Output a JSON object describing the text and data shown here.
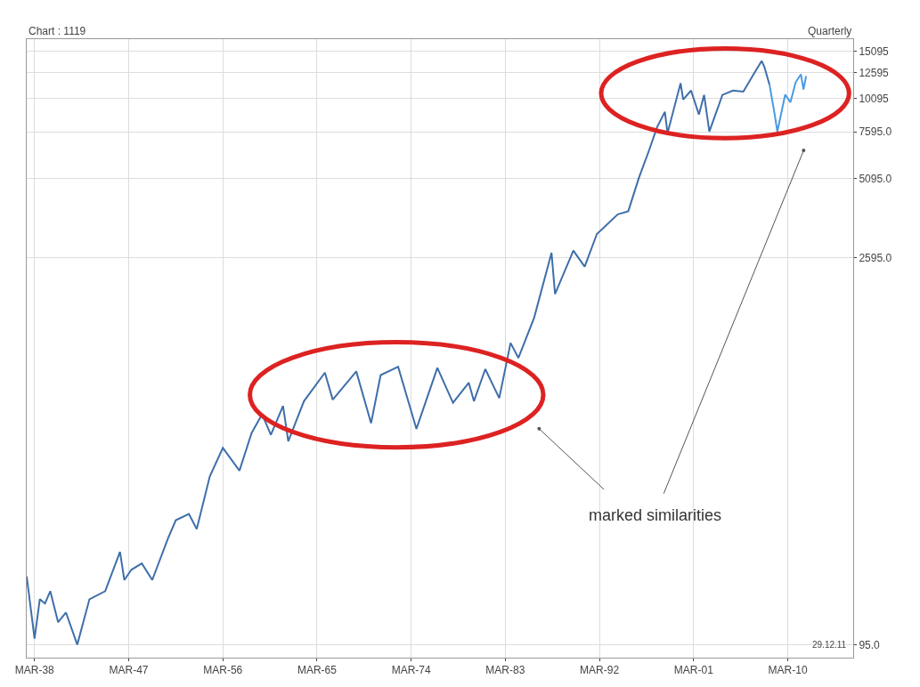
{
  "chart_data": {
    "type": "line",
    "series": [
      {
        "color": "#3f6faa",
        "x": [
          "1937-06",
          "1938-03",
          "1938-09",
          "1939-03",
          "1939-09",
          "1940-06",
          "1941-03",
          "1942-04",
          "1943-06",
          "1944-12",
          "1946-05",
          "1946-10",
          "1947-06",
          "1948-06",
          "1949-06",
          "1950-12",
          "1951-09",
          "1952-12",
          "1953-09",
          "1954-12",
          "1956-03",
          "1957-10",
          "1958-12",
          "1959-12",
          "1960-10",
          "1961-12",
          "1962-06",
          "1963-12",
          "1965-12",
          "1966-09",
          "1968-12",
          "1970-05",
          "1971-04",
          "1972-12",
          "1974-09",
          "1976-09",
          "1978-03",
          "1979-09",
          "1980-03",
          "1981-04",
          "1982-08",
          "1983-09",
          "1984-06",
          "1985-12",
          "1987-08",
          "1987-12",
          "1989-09",
          "1990-10",
          "1991-12",
          "1993-12",
          "1994-12",
          "1995-12",
          "1996-12",
          "1997-09",
          "1998-06",
          "1998-09",
          "1999-12",
          "2000-03",
          "2000-12",
          "2001-09",
          "2002-03",
          "2002-09",
          "2003-12",
          "2004-12",
          "2005-12",
          "2006-12",
          "2007-09",
          "2007-12",
          "2008-06"
        ],
        "values": [
          170,
          100,
          140,
          135,
          150,
          115,
          125,
          95,
          140,
          150,
          210,
          165,
          180,
          190,
          165,
          235,
          275,
          290,
          255,
          400,
          510,
          420,
          580,
          680,
          570,
          730,
          540,
          760,
          970,
          770,
          980,
          630,
          950,
          1020,
          600,
          1010,
          750,
          890,
          760,
          1000,
          780,
          1250,
          1100,
          1550,
          2700,
          1900,
          2750,
          2400,
          3170,
          3750,
          3850,
          5100,
          6500,
          7900,
          9000,
          7500,
          11500,
          10000,
          10800,
          8800,
          10400,
          7600,
          10400,
          10800,
          10700,
          12460,
          13900,
          13260,
          11350
        ]
      },
      {
        "color": "#4a9be0",
        "x": [
          "2008-06",
          "2008-12",
          "2009-03",
          "2009-12",
          "2010-06",
          "2010-12",
          "2011-06",
          "2011-09",
          "2011-12"
        ],
        "values": [
          11350,
          8780,
          7600,
          10430,
          9770,
          11580,
          12410,
          10900,
          12220
        ]
      }
    ],
    "log": "y",
    "xlim": [
      "1937-06",
      "2016-06"
    ],
    "ylim": [
      85,
      16750
    ],
    "xticks": [
      {
        "value": "1938-03",
        "label": "MAR-38"
      },
      {
        "value": "1947-03",
        "label": "MAR-47"
      },
      {
        "value": "1956-03",
        "label": "MAR-56"
      },
      {
        "value": "1965-03",
        "label": "MAR-65"
      },
      {
        "value": "1974-03",
        "label": "MAR-74"
      },
      {
        "value": "1983-03",
        "label": "MAR-83"
      },
      {
        "value": "1992-03",
        "label": "MAR-92"
      },
      {
        "value": "2001-03",
        "label": "MAR-01"
      },
      {
        "value": "2010-03",
        "label": "MAR-10"
      }
    ],
    "yticks": [
      {
        "value": 95,
        "label": "95.0"
      },
      {
        "value": 2595,
        "label": "2595.0"
      },
      {
        "value": 5095,
        "label": "5095.0"
      },
      {
        "value": 7595,
        "label": "7595.0"
      },
      10095,
      12595,
      15095
    ],
    "grid": true,
    "marker": "none",
    "line_style": "solid",
    "annotations": [
      "Chart : 1119",
      "Quarterly",
      "29.12.11",
      "marked similarities"
    ]
  }
}
